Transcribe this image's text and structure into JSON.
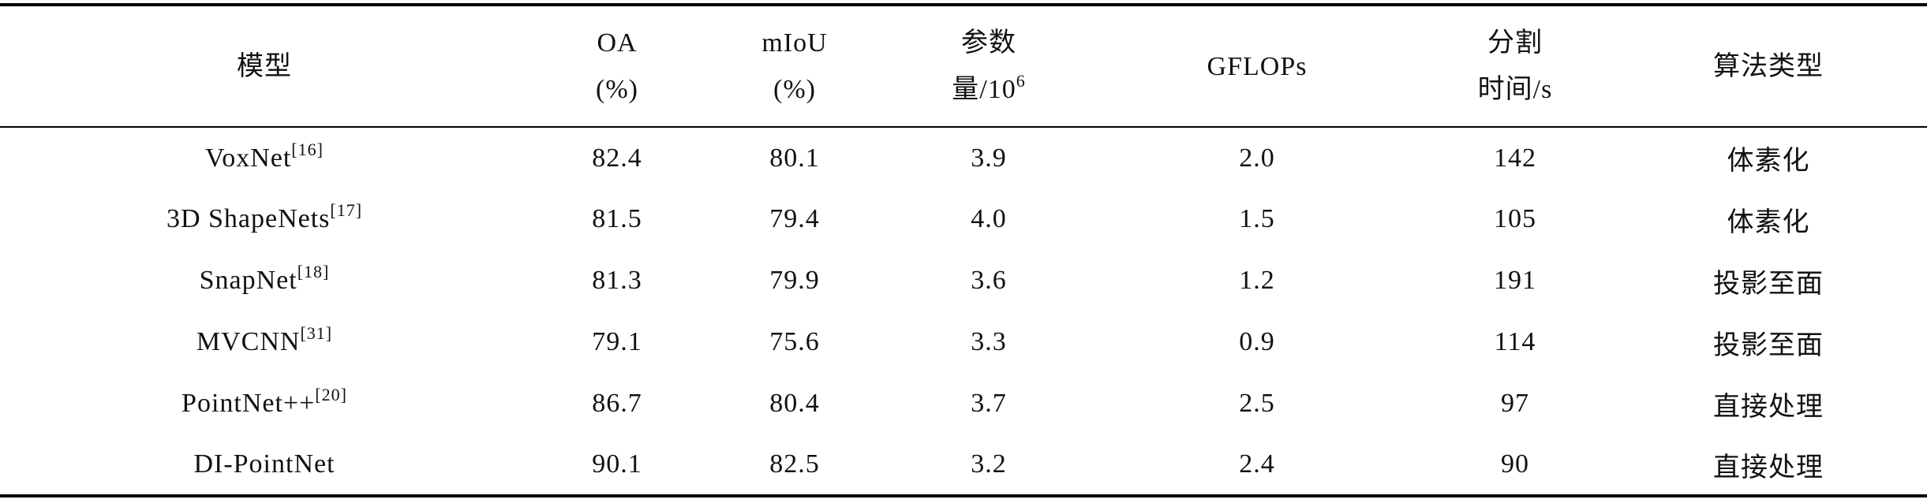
{
  "table": {
    "header": [
      {
        "lines": [
          "模型"
        ]
      },
      {
        "lines": [
          "OA",
          "(%)"
        ]
      },
      {
        "lines": [
          "mIoU",
          "(%)"
        ]
      },
      {
        "lines": [
          "参数",
          "量/10"
        ],
        "sup": "6"
      },
      {
        "lines": [
          "GFLOPs"
        ]
      },
      {
        "lines": [
          "分割",
          "时间/s"
        ]
      },
      {
        "lines": [
          "算法类型"
        ]
      }
    ],
    "rows": [
      [
        {
          "name": "VoxNet",
          "ref": "[16]"
        },
        "82.4",
        "80.1",
        "3.9",
        "2.0",
        "142",
        "体素化"
      ],
      [
        {
          "name": "3D ShapeNets",
          "ref": "[17]"
        },
        "81.5",
        "79.4",
        "4.0",
        "1.5",
        "105",
        "体素化"
      ],
      [
        {
          "name": "SnapNet",
          "ref": "[18]"
        },
        "81.3",
        "79.9",
        "3.6",
        "1.2",
        "191",
        "投影至面"
      ],
      [
        {
          "name": "MVCNN",
          "ref": "[31]"
        },
        "79.1",
        "75.6",
        "3.3",
        "0.9",
        "114",
        "投影至面"
      ],
      [
        {
          "name": "PointNet++",
          "ref": "[20]"
        },
        "86.7",
        "80.4",
        "3.7",
        "2.5",
        "97",
        "直接处理"
      ],
      [
        {
          "name": "DI-PointNet"
        },
        "90.1",
        "82.5",
        "3.2",
        "2.4",
        "90",
        "直接处理"
      ]
    ]
  }
}
